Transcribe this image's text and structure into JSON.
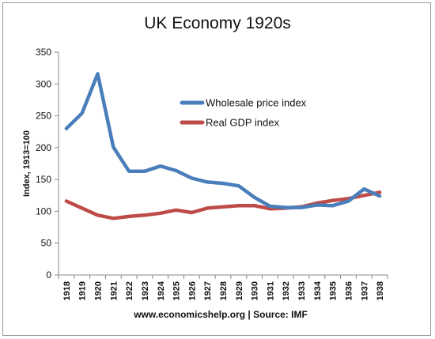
{
  "chart_data": {
    "type": "line",
    "title": "UK Economy 1920s",
    "xlabel": "",
    "ylabel": "Index, 1913=100",
    "ylim": [
      0,
      350
    ],
    "yticks": [
      0,
      50,
      100,
      150,
      200,
      250,
      300,
      350
    ],
    "grid": false,
    "legend_position": "center",
    "categories": [
      "1918",
      "1919",
      "1920",
      "1921",
      "1922",
      "1923",
      "1924",
      "1925",
      "1926",
      "1927",
      "1928",
      "1929",
      "1930",
      "1931",
      "1932",
      "1933",
      "1934",
      "1935",
      "1936",
      "1937",
      "1938"
    ],
    "series": [
      {
        "name": "Wholesale price index",
        "color": "#4a7ebb",
        "values": [
          230,
          254,
          316,
          201,
          163,
          163,
          171,
          164,
          152,
          146,
          144,
          140,
          122,
          108,
          106,
          106,
          110,
          109,
          116,
          135,
          124
        ]
      },
      {
        "name": "Real GDP index",
        "color": "#be4b48",
        "values": [
          116,
          105,
          94,
          89,
          92,
          94,
          97,
          102,
          98,
          105,
          107,
          109,
          109,
          104,
          105,
          107,
          113,
          117,
          120,
          125,
          130
        ]
      }
    ],
    "source_note": "www.economicshelp.org | Source: IMF"
  }
}
